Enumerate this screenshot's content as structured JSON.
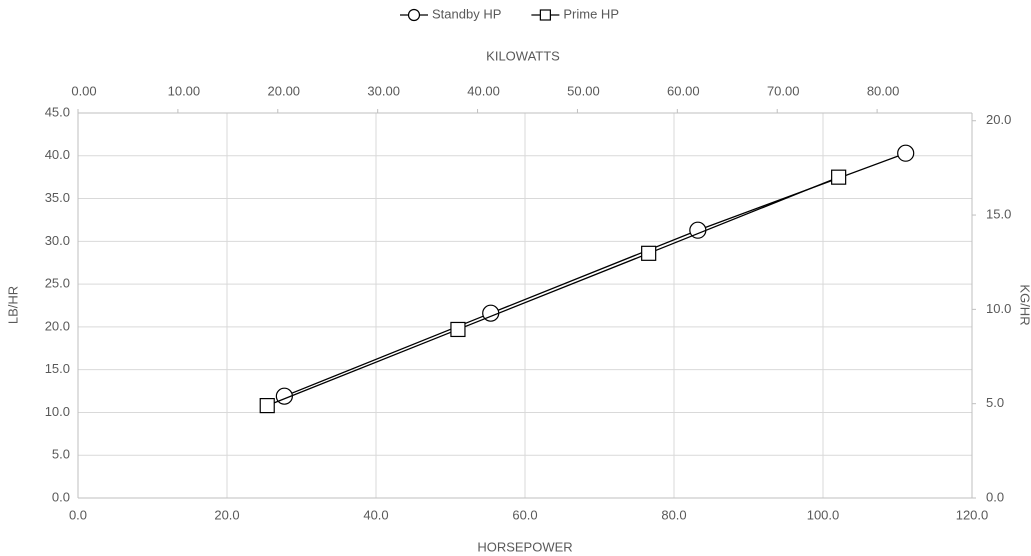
{
  "chart_data": {
    "type": "line",
    "x_label": "HORSEPOWER",
    "x2_label": "KILOWATTS",
    "y_label": "LB/HR",
    "y2_label": "KG/HR",
    "xlim": [
      0,
      120
    ],
    "xticks": [
      {
        "value": 0,
        "label": "0.0"
      },
      {
        "value": 20,
        "label": "20.0"
      },
      {
        "value": 40,
        "label": "40.0"
      },
      {
        "value": 60,
        "label": "60.0"
      },
      {
        "value": 80,
        "label": "80.0"
      },
      {
        "value": 100,
        "label": "100.0"
      },
      {
        "value": 120,
        "label": "120.0"
      }
    ],
    "x2lim": [
      0,
      89.5
    ],
    "x2ticks": [
      {
        "value": 0,
        "label": "0.00"
      },
      {
        "value": 10,
        "label": "10.00"
      },
      {
        "value": 20,
        "label": "20.00"
      },
      {
        "value": 30,
        "label": "30.00"
      },
      {
        "value": 40,
        "label": "40.00"
      },
      {
        "value": 50,
        "label": "50.00"
      },
      {
        "value": 60,
        "label": "60.00"
      },
      {
        "value": 70,
        "label": "70.00"
      },
      {
        "value": 80,
        "label": "80.00"
      }
    ],
    "ylim": [
      0,
      45
    ],
    "yticks": [
      {
        "value": 0,
        "label": "0.0"
      },
      {
        "value": 5,
        "label": "5.0"
      },
      {
        "value": 10,
        "label": "10.0"
      },
      {
        "value": 15,
        "label": "15.0"
      },
      {
        "value": 20,
        "label": "20.0"
      },
      {
        "value": 25,
        "label": "25.0"
      },
      {
        "value": 30,
        "label": "30.0"
      },
      {
        "value": 35,
        "label": "35.0"
      },
      {
        "value": 40,
        "label": "40.0"
      },
      {
        "value": 45,
        "label": "45.0"
      }
    ],
    "y2lim": [
      0,
      20.41
    ],
    "y2ticks": [
      {
        "value": 0,
        "label": "0.0"
      },
      {
        "value": 5,
        "label": "5.0"
      },
      {
        "value": 10,
        "label": "10.0"
      },
      {
        "value": 15,
        "label": "15.0"
      },
      {
        "value": 20,
        "label": "20.0"
      }
    ],
    "grid": true,
    "legend": "top",
    "series": [
      {
        "name": "Standby HP",
        "color": "#000000",
        "marker": "circle",
        "x": [
          27.7,
          55.4,
          83.2,
          111.1
        ],
        "values": [
          11.9,
          21.6,
          31.3,
          40.3
        ]
      },
      {
        "name": "Prime HP",
        "color": "#000000",
        "marker": "square",
        "x": [
          25.4,
          51.0,
          76.6,
          102.1
        ],
        "values": [
          10.8,
          19.7,
          28.6,
          37.5
        ]
      }
    ]
  }
}
